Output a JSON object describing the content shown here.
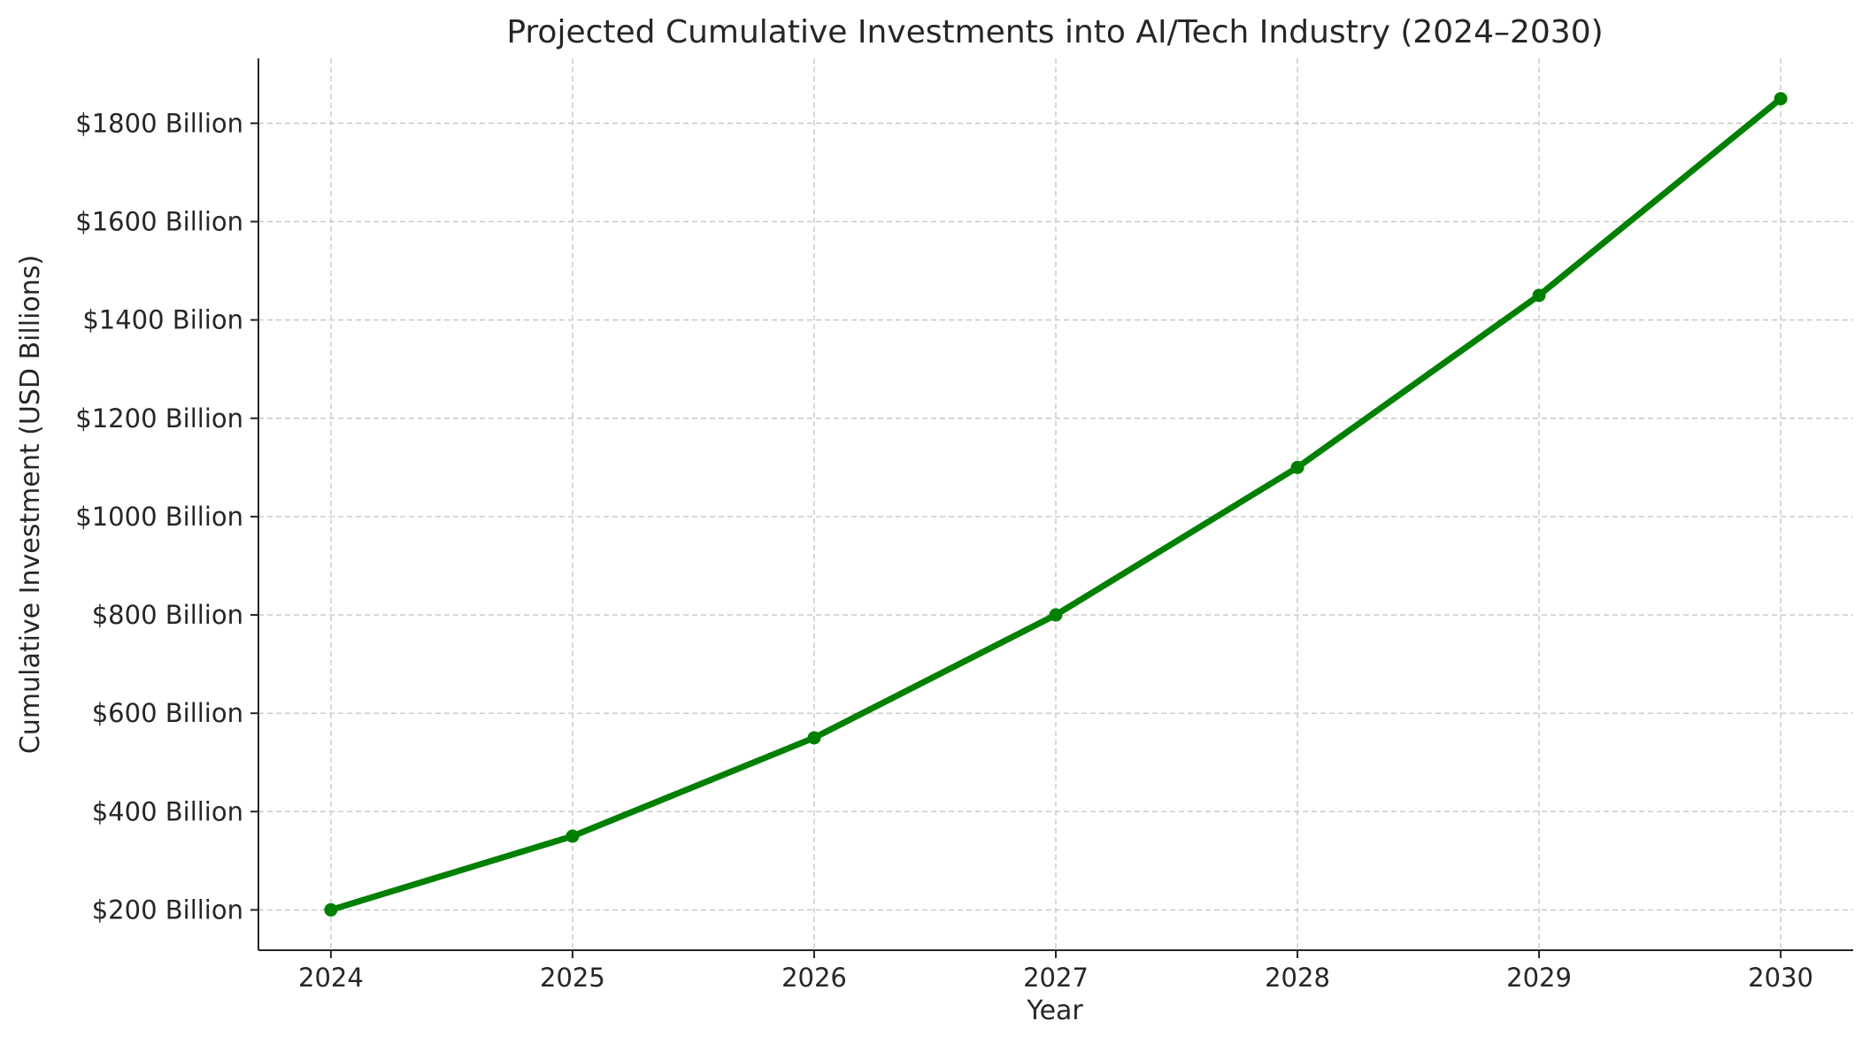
{
  "chart_data": {
    "type": "line",
    "title": "Projected Cumulative Investments into AI/Tech Industry (2024–2030)",
    "xlabel": "Year",
    "ylabel": "Cumulative Investment (USD Billions)",
    "x": [
      2024,
      2025,
      2026,
      2027,
      2028,
      2029,
      2030
    ],
    "series": [
      {
        "values": [
          200,
          350,
          550,
          800,
          1100,
          1450,
          1850
        ],
        "color": "#008000",
        "marker": "circle"
      }
    ],
    "x_ticks": [
      "2024",
      "2025",
      "2026",
      "2027",
      "2028",
      "2029",
      "2030"
    ],
    "y_tick_values": [
      200,
      400,
      600,
      800,
      1000,
      1200,
      1400,
      1600,
      1800
    ],
    "y_tick_labels": [
      "$200 Billion",
      "$400 Billion",
      "$600 Billion",
      "$800 Billion",
      "$1000 Billion",
      "$1200 Billion",
      "$1400 Bilion",
      "$1600 Billion",
      "$1800 Billion"
    ],
    "xlim": [
      2023.7,
      2030.3
    ],
    "ylim": [
      118,
      1932
    ],
    "grid": true,
    "grid_style": "dashed",
    "grid_color": "#c8c8c8",
    "axis_color": "#262626"
  }
}
